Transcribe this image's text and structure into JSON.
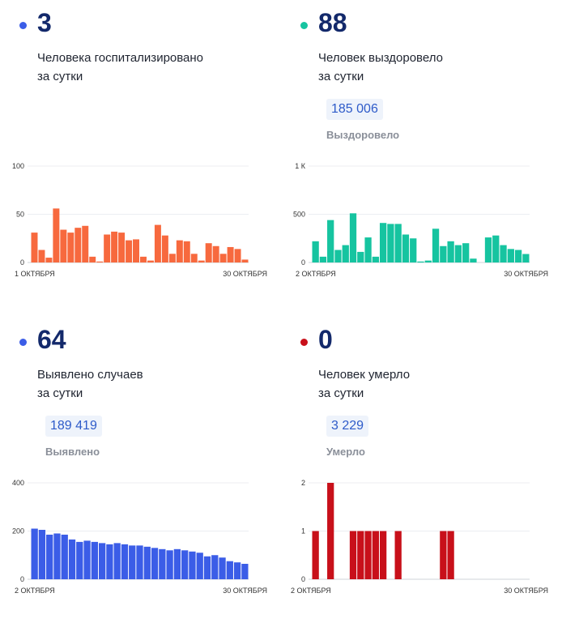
{
  "panels": [
    {
      "count": "3",
      "desc_line1": "Человека госпитализировано",
      "desc_line2": "за сутки",
      "total": "",
      "total_label": "",
      "dot_color": "#3b5de7",
      "bar_color": "#f7693e"
    },
    {
      "count": "88",
      "desc_line1": "Человек выздоровело",
      "desc_line2": "за сутки",
      "total": "185 006",
      "total_label": "Выздоровело",
      "dot_color": "#16c4a0",
      "bar_color": "#16c4a0"
    },
    {
      "count": "64",
      "desc_line1": "Выявлено случаев",
      "desc_line2": "за сутки",
      "total": "189 419",
      "total_label": "Выявлено",
      "dot_color": "#3b5de7",
      "bar_color": "#3b5de7"
    },
    {
      "count": "0",
      "desc_line1": "Человек умерло",
      "desc_line2": "за сутки",
      "total": "3 229",
      "total_label": "Умерло",
      "dot_color": "#c8101a",
      "bar_color": "#c8101a"
    }
  ],
  "chart_data": [
    {
      "type": "bar",
      "x_start_label": "1 ОКТЯБРЯ",
      "x_end_label": "30 ОКТЯБРЯ",
      "yticks": [
        "0",
        "50",
        "100"
      ],
      "ylim": [
        0,
        100
      ],
      "values": [
        31,
        13,
        5,
        56,
        34,
        31,
        36,
        38,
        6,
        1,
        29,
        32,
        31,
        23,
        24,
        6,
        2,
        39,
        28,
        9,
        23,
        22,
        9,
        2,
        20,
        17,
        9,
        16,
        14,
        3
      ],
      "grid": true
    },
    {
      "type": "bar",
      "x_start_label": "2 ОКТЯБРЯ",
      "x_end_label": "30 ОКТЯБРЯ",
      "yticks": [
        "0",
        "500",
        "1 К"
      ],
      "ylim": [
        0,
        1000
      ],
      "values": [
        220,
        60,
        440,
        130,
        180,
        510,
        110,
        260,
        60,
        410,
        400,
        400,
        290,
        250,
        10,
        20,
        350,
        170,
        220,
        180,
        200,
        40,
        0,
        260,
        280,
        180,
        140,
        130,
        88
      ],
      "grid": true
    },
    {
      "type": "bar",
      "x_start_label": "2 ОКТЯБРЯ",
      "x_end_label": "30 ОКТЯБРЯ",
      "yticks": [
        "0",
        "200",
        "400"
      ],
      "ylim": [
        0,
        400
      ],
      "values": [
        210,
        205,
        185,
        190,
        185,
        165,
        155,
        160,
        155,
        150,
        145,
        150,
        145,
        140,
        140,
        135,
        130,
        125,
        120,
        125,
        120,
        115,
        110,
        95,
        100,
        90,
        75,
        70,
        64
      ],
      "grid": true
    },
    {
      "type": "bar",
      "x_start_label": "2 ОКТЯБРЯ",
      "x_end_label": "30 ОКТЯБРЯ",
      "yticks": [
        "0",
        "1",
        "2"
      ],
      "ylim": [
        0,
        2
      ],
      "values": [
        1,
        0,
        2,
        0,
        0,
        1,
        1,
        1,
        1,
        1,
        0,
        1,
        0,
        0,
        0,
        0,
        0,
        1,
        1,
        0,
        0,
        0,
        0,
        0,
        0,
        0,
        0,
        0,
        0
      ],
      "grid": true
    }
  ]
}
